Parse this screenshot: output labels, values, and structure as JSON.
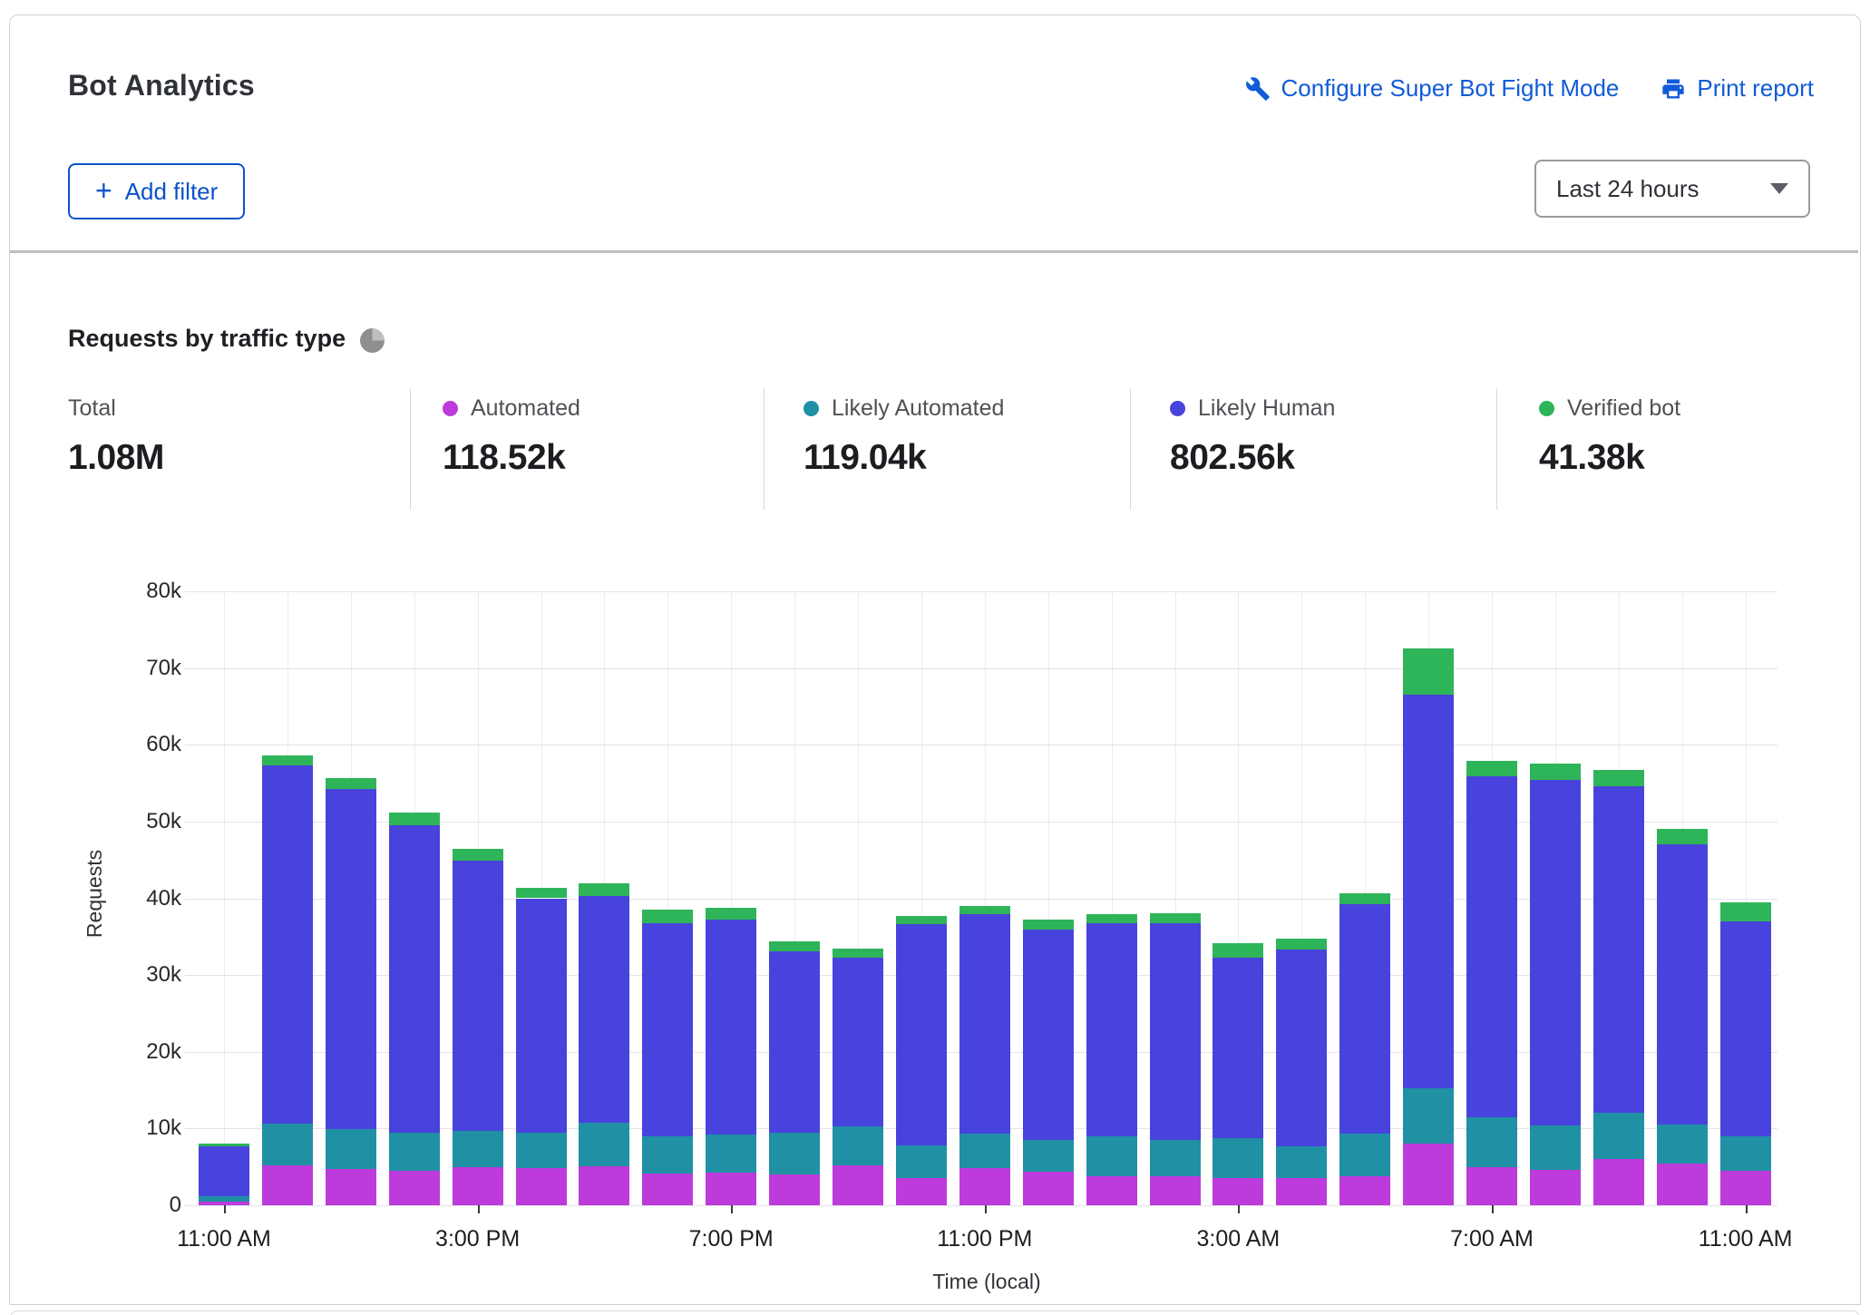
{
  "header": {
    "title": "Bot Analytics",
    "configure_link": "Configure Super Bot Fight Mode",
    "print_link": "Print report",
    "add_filter_label": "Add filter",
    "time_range_value": "Last 24 hours"
  },
  "section": {
    "title": "Requests by traffic type"
  },
  "stats": [
    {
      "label": "Total",
      "value": "1.08M",
      "color": null
    },
    {
      "label": "Automated",
      "value": "118.52k",
      "color": "#bd3bdb"
    },
    {
      "label": "Likely Automated",
      "value": "119.04k",
      "color": "#2090a4"
    },
    {
      "label": "Likely Human",
      "value": "802.56k",
      "color": "#4843dc"
    },
    {
      "label": "Verified bot",
      "value": "41.38k",
      "color": "#2eb459"
    }
  ],
  "ui_colors": {
    "link_blue": "#105bd8",
    "grid": "#e4e4e8",
    "divider": "#bdbdc1"
  },
  "chart_data": {
    "type": "bar",
    "stacked": true,
    "title": "Requests by traffic type",
    "xlabel": "Time (local)",
    "ylabel": "Requests",
    "ylim": [
      0,
      80000
    ],
    "grid": true,
    "legend_position": "top",
    "ytick_labels": [
      "0",
      "10k",
      "20k",
      "30k",
      "40k",
      "50k",
      "60k",
      "70k",
      "80k"
    ],
    "xtick_indices": [
      0,
      4,
      8,
      12,
      16,
      20,
      24
    ],
    "xtick_labels": [
      "11:00 AM",
      "3:00 PM",
      "7:00 PM",
      "11:00 PM",
      "3:00 AM",
      "7:00 AM",
      "11:00 AM"
    ],
    "categories": [
      "11:00 AM",
      "12:00 PM",
      "1:00 PM",
      "2:00 PM",
      "3:00 PM",
      "4:00 PM",
      "5:00 PM",
      "6:00 PM",
      "7:00 PM",
      "8:00 PM",
      "9:00 PM",
      "10:00 PM",
      "11:00 PM",
      "12:00 AM",
      "1:00 AM",
      "2:00 AM",
      "3:00 AM",
      "4:00 AM",
      "5:00 AM",
      "6:00 AM",
      "7:00 AM",
      "8:00 AM",
      "9:00 AM",
      "10:00 AM",
      "11:00 AM"
    ],
    "series": [
      {
        "name": "Automated",
        "color": "#bd3bdb",
        "values": [
          500,
          5200,
          4700,
          4500,
          5000,
          4850,
          5100,
          4100,
          4300,
          4000,
          5200,
          3550,
          4800,
          4400,
          3750,
          3800,
          3550,
          3600,
          3800,
          8000,
          5000,
          4600,
          6000,
          5400,
          4500
        ]
      },
      {
        "name": "Likely Automated",
        "color": "#2090a4",
        "values": [
          700,
          5400,
          5200,
          5000,
          4700,
          4550,
          5700,
          4900,
          4900,
          5500,
          5100,
          4250,
          4500,
          4150,
          5250,
          4650,
          5200,
          4050,
          5500,
          7200,
          6500,
          5800,
          6100,
          5100,
          4500
        ]
      },
      {
        "name": "Likely Human",
        "color": "#4843dc",
        "values": [
          6500,
          46700,
          44300,
          40000,
          35200,
          30600,
          29500,
          27800,
          28000,
          23600,
          22000,
          28800,
          28600,
          27350,
          27750,
          28250,
          23550,
          25650,
          29900,
          51300,
          44400,
          45000,
          42500,
          36500,
          28000
        ]
      },
      {
        "name": "Verified bot",
        "color": "#2eb459",
        "values": [
          300,
          1300,
          1500,
          1700,
          1500,
          1300,
          1600,
          1700,
          1600,
          1300,
          1200,
          1150,
          1100,
          1300,
          1150,
          1300,
          1800,
          1500,
          1400,
          6000,
          2000,
          2100,
          2100,
          2000,
          2500
        ]
      }
    ]
  }
}
